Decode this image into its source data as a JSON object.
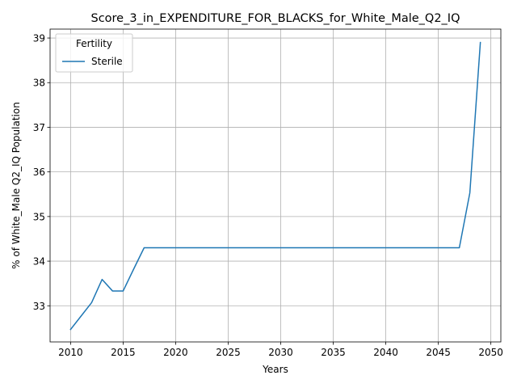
{
  "chart_data": {
    "type": "line",
    "title": "Score_3_in_EXPENDITURE_FOR_BLACKS_for_White_Male_Q2_IQ",
    "xlabel": "Years",
    "ylabel": "% of White_Male Q2_IQ Population",
    "xlim": [
      2008.05,
      2050.95
    ],
    "ylim": [
      32.19,
      39.2
    ],
    "xticks": [
      2010,
      2015,
      2020,
      2025,
      2030,
      2035,
      2040,
      2045,
      2050
    ],
    "yticks": [
      33,
      34,
      35,
      36,
      37,
      38,
      39
    ],
    "grid": true,
    "legend": {
      "title": "Fertility",
      "placement": "top-left"
    },
    "series": [
      {
        "name": "Sterile",
        "color": "#1f77b4",
        "x": [
          2010,
          2011,
          2012,
          2013,
          2014,
          2015,
          2016,
          2017,
          2018,
          2019,
          2020,
          2021,
          2022,
          2023,
          2024,
          2025,
          2026,
          2027,
          2028,
          2029,
          2030,
          2031,
          2032,
          2033,
          2034,
          2035,
          2036,
          2037,
          2038,
          2039,
          2040,
          2041,
          2042,
          2043,
          2044,
          2045,
          2046,
          2047,
          2048,
          2049
        ],
        "y": [
          32.47,
          32.77,
          33.07,
          33.59,
          33.33,
          33.33,
          33.82,
          34.3,
          34.3,
          34.3,
          34.3,
          34.3,
          34.3,
          34.3,
          34.3,
          34.3,
          34.3,
          34.3,
          34.3,
          34.3,
          34.3,
          34.3,
          34.3,
          34.3,
          34.3,
          34.3,
          34.3,
          34.3,
          34.3,
          34.3,
          34.3,
          34.3,
          34.3,
          34.3,
          34.3,
          34.3,
          34.3,
          34.3,
          35.53,
          38.9
        ]
      }
    ]
  }
}
